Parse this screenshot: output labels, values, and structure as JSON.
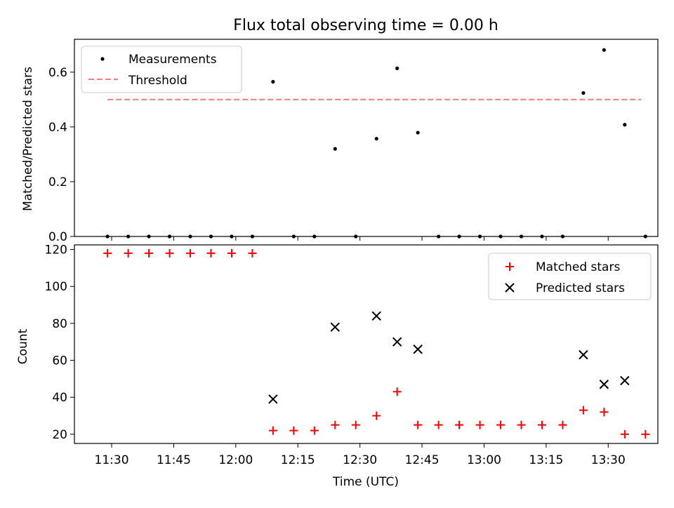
{
  "chart_data": [
    {
      "type": "scatter",
      "title": "Flux total observing time = 0.00 h",
      "xlabel": "",
      "ylabel": "Matched/Predicted stars",
      "ylim": [
        0,
        0.72
      ],
      "y_ticks": [
        "0.0",
        "0.2",
        "0.4",
        "0.6"
      ],
      "x_range": [
        "11:21",
        "13:42"
      ],
      "grid": false,
      "legend_position": "top-left",
      "threshold": 0.5,
      "threshold_x": [
        "11:29",
        "13:38"
      ],
      "series": [
        {
          "name": "Measurements",
          "marker": "dot",
          "color": "#000000",
          "points": [
            {
              "x": "11:29",
              "y": 0.0
            },
            {
              "x": "11:34",
              "y": 0.0
            },
            {
              "x": "11:39",
              "y": 0.0
            },
            {
              "x": "11:44",
              "y": 0.0
            },
            {
              "x": "11:49",
              "y": 0.0
            },
            {
              "x": "11:54",
              "y": 0.0
            },
            {
              "x": "11:59",
              "y": 0.0
            },
            {
              "x": "12:04",
              "y": 0.0
            },
            {
              "x": "12:09",
              "y": 0.565
            },
            {
              "x": "12:14",
              "y": 0.0
            },
            {
              "x": "12:19",
              "y": 0.0
            },
            {
              "x": "12:24",
              "y": 0.32
            },
            {
              "x": "12:29",
              "y": 0.0
            },
            {
              "x": "12:34",
              "y": 0.357
            },
            {
              "x": "12:39",
              "y": 0.614
            },
            {
              "x": "12:44",
              "y": 0.379
            },
            {
              "x": "12:49",
              "y": 0.0
            },
            {
              "x": "12:54",
              "y": 0.0
            },
            {
              "x": "12:59",
              "y": 0.0
            },
            {
              "x": "13:04",
              "y": 0.0
            },
            {
              "x": "13:09",
              "y": 0.0
            },
            {
              "x": "13:14",
              "y": 0.0
            },
            {
              "x": "13:19",
              "y": 0.0
            },
            {
              "x": "13:24",
              "y": 0.524
            },
            {
              "x": "13:29",
              "y": 0.681
            },
            {
              "x": "13:34",
              "y": 0.408
            },
            {
              "x": "13:39",
              "y": 0.0
            }
          ]
        },
        {
          "name": "Threshold",
          "marker": "dashed-line",
          "color": "#f08080",
          "values": [
            0.5
          ]
        }
      ]
    },
    {
      "type": "scatter",
      "title": "",
      "xlabel": "Time (UTC)",
      "ylabel": "Count",
      "ylim": [
        15,
        122.5
      ],
      "y_ticks": [
        "20",
        "40",
        "60",
        "80",
        "100",
        "120"
      ],
      "x_range": [
        "11:21",
        "13:42"
      ],
      "x_ticks": [
        "11:30",
        "11:45",
        "12:00",
        "12:15",
        "12:30",
        "12:45",
        "13:00",
        "13:15",
        "13:30"
      ],
      "grid": false,
      "legend_position": "top-right",
      "series": [
        {
          "name": "Matched stars",
          "marker": "plus",
          "color": "#ff0000",
          "points": [
            {
              "x": "11:29",
              "y": 118
            },
            {
              "x": "11:34",
              "y": 118
            },
            {
              "x": "11:39",
              "y": 118
            },
            {
              "x": "11:44",
              "y": 118
            },
            {
              "x": "11:49",
              "y": 118
            },
            {
              "x": "11:54",
              "y": 118
            },
            {
              "x": "11:59",
              "y": 118
            },
            {
              "x": "12:04",
              "y": 118
            },
            {
              "x": "12:09",
              "y": 22
            },
            {
              "x": "12:14",
              "y": 22
            },
            {
              "x": "12:19",
              "y": 22
            },
            {
              "x": "12:24",
              "y": 25
            },
            {
              "x": "12:29",
              "y": 25
            },
            {
              "x": "12:34",
              "y": 30
            },
            {
              "x": "12:39",
              "y": 43
            },
            {
              "x": "12:44",
              "y": 25
            },
            {
              "x": "12:49",
              "y": 25
            },
            {
              "x": "12:54",
              "y": 25
            },
            {
              "x": "12:59",
              "y": 25
            },
            {
              "x": "13:04",
              "y": 25
            },
            {
              "x": "13:09",
              "y": 25
            },
            {
              "x": "13:14",
              "y": 25
            },
            {
              "x": "13:19",
              "y": 25
            },
            {
              "x": "13:24",
              "y": 33
            },
            {
              "x": "13:29",
              "y": 32
            },
            {
              "x": "13:34",
              "y": 20
            },
            {
              "x": "13:39",
              "y": 20
            }
          ]
        },
        {
          "name": "Predicted stars",
          "marker": "x",
          "color": "#000000",
          "points": [
            {
              "x": "12:09",
              "y": 39
            },
            {
              "x": "12:24",
              "y": 78
            },
            {
              "x": "12:34",
              "y": 84
            },
            {
              "x": "12:39",
              "y": 70
            },
            {
              "x": "12:44",
              "y": 66
            },
            {
              "x": "13:24",
              "y": 63
            },
            {
              "x": "13:29",
              "y": 47
            },
            {
              "x": "13:34",
              "y": 49
            }
          ]
        }
      ]
    }
  ]
}
